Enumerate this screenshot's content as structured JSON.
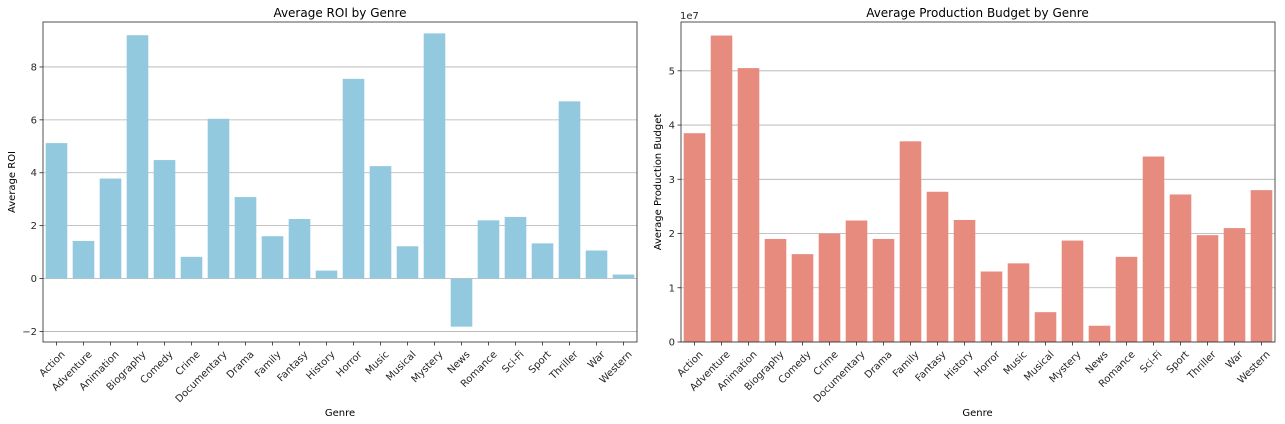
{
  "chart_data": [
    {
      "type": "bar",
      "title": "Average ROI by Genre",
      "xlabel": "Genre",
      "ylabel": "Average ROI",
      "ylim": [
        -2.4,
        9.7
      ],
      "yticks": [
        -2,
        0,
        2,
        4,
        6,
        8
      ],
      "grid": "y",
      "color": "#92c9df",
      "categories": [
        "Action",
        "Adventure",
        "Animation",
        "Biography",
        "Comedy",
        "Crime",
        "Documentary",
        "Drama",
        "Family",
        "Fantasy",
        "History",
        "Horror",
        "Music",
        "Musical",
        "Mystery",
        "News",
        "Romance",
        "Sci-Fi",
        "Sport",
        "Thriller",
        "War",
        "Western"
      ],
      "values": [
        5.12,
        1.42,
        3.78,
        9.2,
        4.48,
        0.82,
        6.04,
        3.08,
        1.6,
        2.25,
        0.3,
        7.55,
        4.25,
        1.22,
        9.27,
        -1.82,
        2.2,
        2.33,
        1.33,
        6.7,
        1.06,
        0.15
      ]
    },
    {
      "type": "bar",
      "title": "Average Production Budget by Genre",
      "xlabel": "Genre",
      "ylabel": "Average Production Budget",
      "offset_text": "1e7",
      "ylim": [
        0,
        5.9
      ],
      "yticks": [
        0,
        1,
        2,
        3,
        4,
        5
      ],
      "grid": "y",
      "color": "#e88b7f",
      "categories": [
        "Action",
        "Adventure",
        "Animation",
        "Biography",
        "Comedy",
        "Crime",
        "Documentary",
        "Drama",
        "Family",
        "Fantasy",
        "History",
        "Horror",
        "Music",
        "Musical",
        "Mystery",
        "News",
        "Romance",
        "Sci-Fi",
        "Sport",
        "Thriller",
        "War",
        "Western"
      ],
      "values": [
        3.85,
        5.65,
        5.05,
        1.9,
        1.62,
        2.0,
        2.24,
        1.9,
        3.7,
        2.77,
        2.25,
        1.3,
        1.45,
        0.55,
        1.87,
        0.3,
        1.57,
        3.42,
        2.72,
        1.97,
        2.1,
        2.8
      ]
    }
  ]
}
